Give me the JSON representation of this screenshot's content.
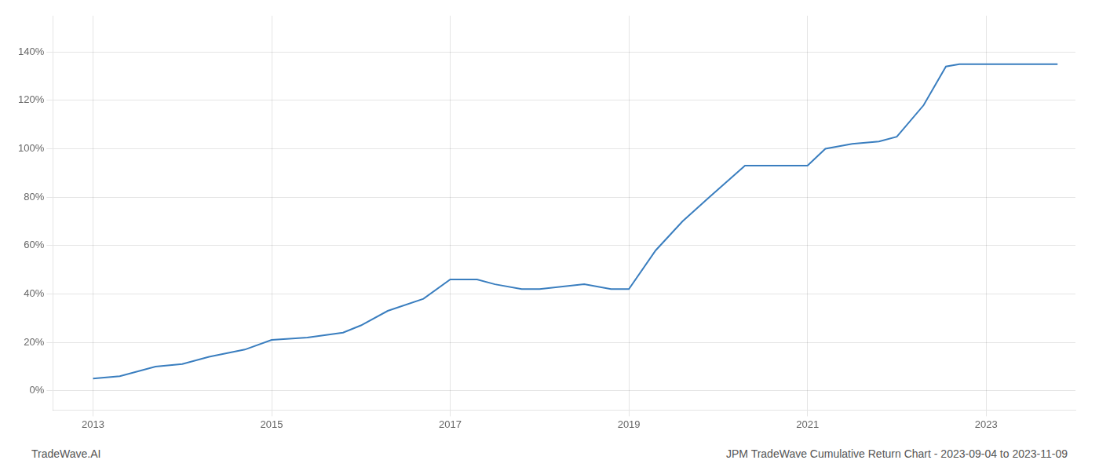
{
  "chart_data": {
    "type": "line",
    "title": "JPM TradeWave Cumulative Return Chart - 2023-09-04 to 2023-11-09",
    "annotations": [
      "TradeWave.AI"
    ],
    "x": [
      2013.0,
      2013.3,
      2013.7,
      2014.0,
      2014.3,
      2014.7,
      2015.0,
      2015.4,
      2015.8,
      2016.0,
      2016.3,
      2016.7,
      2017.0,
      2017.3,
      2017.5,
      2017.8,
      2018.0,
      2018.5,
      2018.8,
      2019.0,
      2019.3,
      2019.6,
      2019.9,
      2020.3,
      2020.7,
      2021.0,
      2021.2,
      2021.5,
      2021.8,
      2022.0,
      2022.3,
      2022.55,
      2022.7,
      2023.0,
      2023.8
    ],
    "values": [
      5,
      6,
      10,
      11,
      14,
      17,
      21,
      22,
      24,
      27,
      33,
      38,
      46,
      46,
      44,
      42,
      42,
      44,
      42,
      42,
      58,
      70,
      80,
      93,
      93,
      93,
      100,
      102,
      103,
      105,
      118,
      134,
      135,
      135,
      135
    ],
    "color": "#3a7ebf",
    "xlim": [
      2012.55,
      2024.0
    ],
    "xticks": [
      2013,
      2015,
      2017,
      2019,
      2021,
      2023
    ],
    "ylim": [
      -8,
      155
    ],
    "yticks": [
      {
        "value": 0,
        "label": "0%"
      },
      {
        "value": 20,
        "label": "20%"
      },
      {
        "value": 40,
        "label": "40%"
      },
      {
        "value": 60,
        "label": "60%"
      },
      {
        "value": 80,
        "label": "80%"
      },
      {
        "value": 100,
        "label": "100%"
      },
      {
        "value": 120,
        "label": "120%"
      },
      {
        "value": 140,
        "label": "140%"
      }
    ],
    "grid": true
  }
}
